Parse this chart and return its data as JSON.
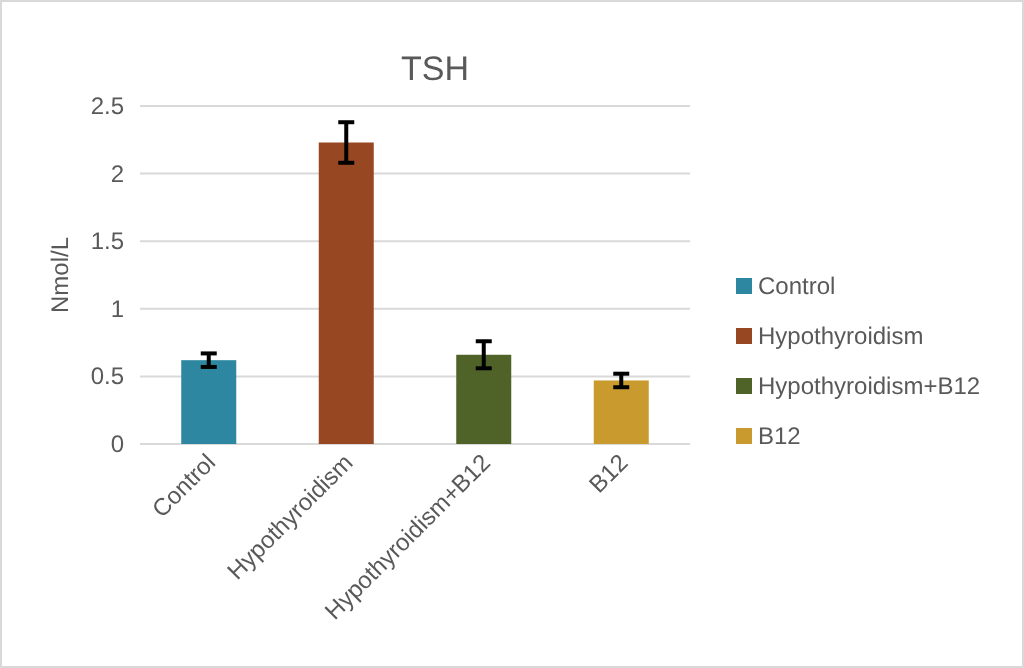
{
  "chart_data": {
    "type": "bar",
    "title": "TSH",
    "ylabel": "Nmol/L",
    "categories": [
      "Control",
      "Hypothyroidism",
      "Hypothyroidism+B12",
      "B12"
    ],
    "series": [
      {
        "name": "Control",
        "color": "#2e87a0",
        "values": [
          0.62,
          null,
          null,
          null
        ],
        "errors": [
          0.05,
          null,
          null,
          null
        ]
      },
      {
        "name": "Hypothyroidism",
        "color": "#974822",
        "values": [
          null,
          2.23,
          null,
          null
        ],
        "errors": [
          null,
          0.15,
          null,
          null
        ]
      },
      {
        "name": "Hypothyroidism+B12",
        "color": "#4f6228",
        "values": [
          null,
          null,
          0.66,
          null
        ],
        "errors": [
          null,
          null,
          0.1,
          null
        ]
      },
      {
        "name": "B12",
        "color": "#c99a2e",
        "values": [
          null,
          null,
          null,
          0.47
        ],
        "errors": [
          null,
          null,
          null,
          0.05
        ]
      }
    ],
    "ylim": [
      0,
      2.5
    ],
    "yticks": [
      0,
      0.5,
      1,
      1.5,
      2,
      2.5
    ],
    "grid": "y",
    "legend": "right"
  }
}
